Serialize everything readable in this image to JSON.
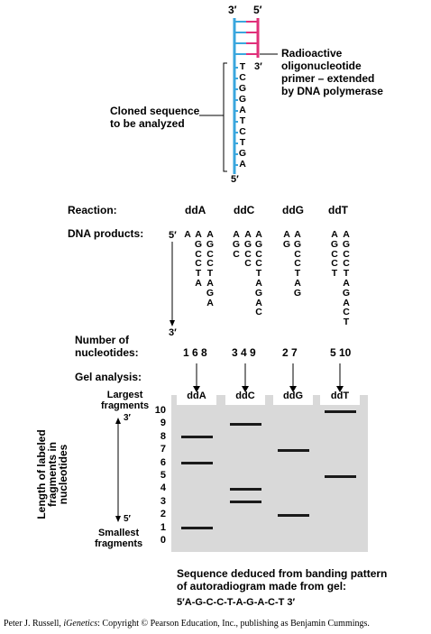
{
  "top": {
    "end_3prime_top": "3′",
    "end_5prime_top": "5′",
    "primer_end_3prime": "3′",
    "template_end_5prime": "5′",
    "primer_label": [
      "Radioactive",
      "oligonucleotide",
      "primer – extended",
      "by DNA polymerase"
    ],
    "cloned_label": [
      "Cloned sequence",
      "to be analyzed"
    ],
    "template_bases": [
      "T",
      "C",
      "G",
      "G",
      "A",
      "T",
      "C",
      "T",
      "G",
      "A"
    ],
    "colors": {
      "template": "#3aa6dd",
      "primer": "#e0307a"
    }
  },
  "reactions": {
    "label": "Reaction:",
    "names": [
      "ddA",
      "ddC",
      "ddG",
      "ddT"
    ]
  },
  "products": {
    "label": "DNA products:",
    "end_5prime": "5′",
    "end_3prime": "3′",
    "columns": [
      [
        "A"
      ],
      [
        "A",
        "G",
        "C",
        "C",
        "T",
        "A"
      ],
      [
        "A",
        "G",
        "C",
        "C",
        "T",
        "A",
        "G",
        "A"
      ],
      [
        "A",
        "G",
        "C"
      ],
      [
        "A",
        "G",
        "C",
        "C"
      ],
      [
        "A",
        "G",
        "C",
        "C",
        "T",
        "A",
        "G",
        "A",
        "C"
      ],
      [
        "A",
        "G"
      ],
      [
        "A",
        "G",
        "C",
        "C",
        "T",
        "A",
        "G"
      ],
      [
        "A",
        "G",
        "C",
        "C",
        "T"
      ],
      [
        "A",
        "G",
        "C",
        "C",
        "T",
        "A",
        "G",
        "A",
        "C",
        "T"
      ]
    ]
  },
  "nucleotides": {
    "label": [
      "Number of",
      "nucleotides:"
    ],
    "groups": [
      "1 6 8",
      "3 4 9",
      "2 7",
      "5 10"
    ]
  },
  "gel": {
    "label": "Gel analysis:",
    "largest": [
      "Largest",
      "fragments"
    ],
    "smallest": [
      "Smallest",
      "fragments"
    ],
    "y_axis_label": [
      "Length of labeled",
      "fragments in",
      "nucleotides"
    ],
    "end_3prime": "3′",
    "end_5prime": "5′",
    "lanes": [
      "ddA",
      "ddC",
      "ddG",
      "ddT"
    ],
    "ticks": [
      "0",
      "1",
      "2",
      "3",
      "4",
      "5",
      "6",
      "7",
      "8",
      "9",
      "10"
    ],
    "bands": {
      "ddA": [
        1,
        6,
        8
      ],
      "ddC": [
        3,
        4,
        9
      ],
      "ddG": [
        2,
        7
      ],
      "ddT": [
        5,
        10
      ]
    },
    "gel_color": "#d9d9d9"
  },
  "sequence": {
    "title": [
      "Sequence deduced from banding pattern",
      "of autoradiogram made from gel:"
    ],
    "result": "5′A-G-C-C-T-A-G-A-C-T 3′"
  },
  "footer": {
    "author": "Peter J. Russell, ",
    "book": "iGenetics",
    "rest": ": Copyright © Pearson Education, Inc., publishing as Benjamin Cummings."
  }
}
